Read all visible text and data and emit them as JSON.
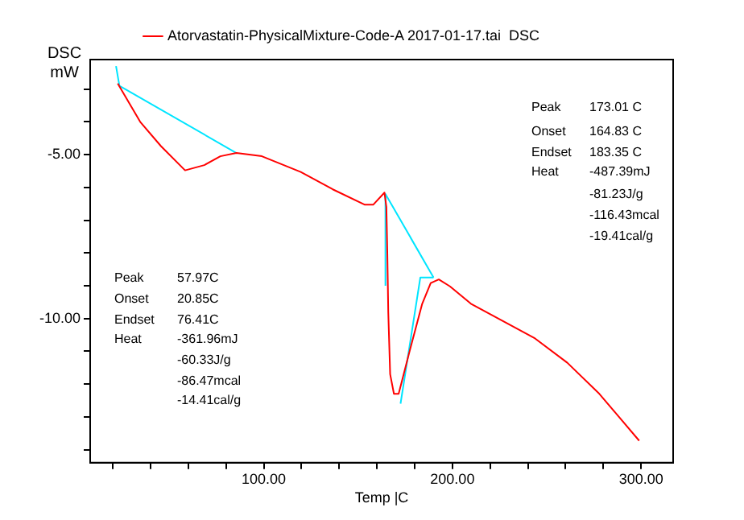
{
  "chart_data": {
    "type": "line",
    "xlabel": "Temp |C",
    "ylabel": "DSC mW",
    "legend": "top",
    "marker": "none",
    "line_style": "solid",
    "grid": false,
    "xlim": [
      8,
      317
    ],
    "ylim": [
      -14.4,
      -2.1
    ],
    "xticks": [
      {
        "value": 20,
        "label": null
      },
      {
        "value": 40,
        "label": null
      },
      {
        "value": 60,
        "label": null
      },
      {
        "value": 80,
        "label": null
      },
      {
        "value": 100,
        "label": "100.00"
      },
      {
        "value": 120,
        "label": null
      },
      {
        "value": 140,
        "label": null
      },
      {
        "value": 160,
        "label": null
      },
      {
        "value": 180,
        "label": null
      },
      {
        "value": 200,
        "label": "200.00"
      },
      {
        "value": 220,
        "label": null
      },
      {
        "value": 240,
        "label": null
      },
      {
        "value": 260,
        "label": null
      },
      {
        "value": 280,
        "label": null
      },
      {
        "value": 300,
        "label": "300.00"
      }
    ],
    "yticks": [
      {
        "value": -3,
        "label": null
      },
      {
        "value": -4,
        "label": null
      },
      {
        "value": -5,
        "label": "-5.00"
      },
      {
        "value": -6,
        "label": null
      },
      {
        "value": -7,
        "label": null
      },
      {
        "value": -8,
        "label": null
      },
      {
        "value": -9,
        "label": null
      },
      {
        "value": -10,
        "label": "-10.00"
      },
      {
        "value": -11,
        "label": null
      },
      {
        "value": -12,
        "label": null
      },
      {
        "value": -13,
        "label": null
      },
      {
        "value": -14,
        "label": null
      }
    ],
    "series": [
      {
        "name": "Atorvastatin-PhysicalMixture-Code-A 2017-01-17.tai  DSC",
        "color": "#ff0000",
        "x": [
          22.6,
          34.5,
          45.5,
          58.3,
          68.5,
          77,
          85.5,
          99,
          119.6,
          136.6,
          153.6,
          158,
          164,
          165,
          165.5,
          166,
          167,
          169,
          171.5,
          177.4,
          184,
          188.5,
          192.8,
          198.7,
          209.8,
          226.8,
          243.8,
          260.9,
          277.9,
          299
        ],
        "values": [
          -2.83,
          -4.0,
          -4.74,
          -5.48,
          -5.32,
          -5.05,
          -4.95,
          -5.05,
          -5.53,
          -6.06,
          -6.53,
          -6.53,
          -6.16,
          -6.6,
          -8.0,
          -9.8,
          -11.7,
          -12.3,
          -12.3,
          -10.98,
          -9.55,
          -8.92,
          -8.81,
          -9.02,
          -9.55,
          -10.08,
          -10.61,
          -11.35,
          -12.3,
          -13.73
        ]
      },
      {
        "color": "#00e5ff",
        "x": [
          21.7,
          23.5,
          85.5
        ],
        "values": [
          -2.3,
          -2.9,
          -4.95
        ]
      },
      {
        "color": "#00e5ff",
        "x": [
          164.5,
          164.5,
          190
        ],
        "values": [
          -9.0,
          -6.2,
          -8.75
        ]
      },
      {
        "color": "#00e5ff",
        "x": [
          172.5,
          183,
          190
        ],
        "values": [
          -12.6,
          -8.75,
          -8.75
        ]
      }
    ],
    "annotations": [
      "Peak",
      "173.01 C",
      "Onset",
      "164.83 C",
      "Endset",
      "183.35 C",
      "Heat",
      "-487.39mJ",
      "-81.23J/g",
      "-116.43mcal",
      "-19.41cal/g",
      "Peak",
      "57.97C",
      "Onset",
      "20.85C",
      "Endset",
      "76.41C",
      "Heat",
      "-361.96mJ",
      "-60.33J/g",
      "-86.47mcal",
      "-14.41cal/g"
    ]
  }
}
